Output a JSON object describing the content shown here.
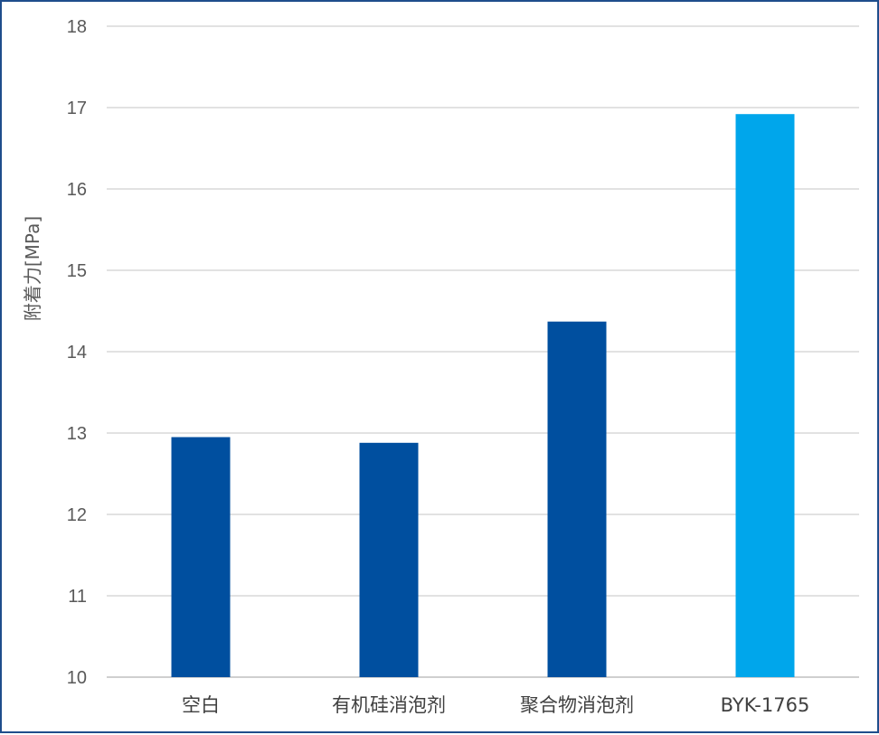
{
  "chart_data": {
    "type": "bar",
    "title": "",
    "xlabel": "",
    "ylabel": "附着力[MPa]",
    "ylim": [
      10,
      18
    ],
    "yticks": [
      10,
      11,
      12,
      13,
      14,
      15,
      16,
      17,
      18
    ],
    "grid": true,
    "legend": "none",
    "categories": [
      "空白",
      "有机硅消泡剂",
      "聚合物消泡剂",
      "BYK-1765"
    ],
    "values": [
      12.95,
      12.88,
      14.37,
      16.92
    ],
    "colors": [
      "#004f9f",
      "#004f9f",
      "#004f9f",
      "#00a6eb"
    ]
  },
  "colors": {
    "frame": "#1f4e8c",
    "gridline": "#d9d9d9",
    "text": "#595959"
  }
}
